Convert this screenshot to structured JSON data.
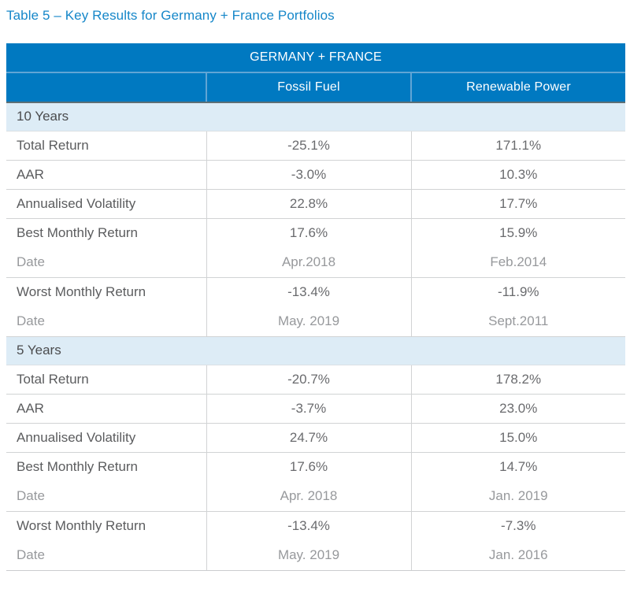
{
  "page": {
    "title": "Table 5 – Key Results for Germany + France Portfolios"
  },
  "table": {
    "header": "GERMANY + FRANCE",
    "columns": [
      "",
      "Fossil Fuel",
      "Renewable Power"
    ],
    "sections": [
      {
        "label": "10 Years",
        "rows": [
          {
            "type": "metric",
            "label": "Total Return",
            "fossil": "-25.1%",
            "renewable": "171.1%"
          },
          {
            "type": "metric",
            "label": "AAR",
            "fossil": "-3.0%",
            "renewable": "10.3%"
          },
          {
            "type": "metric",
            "label": "Annualised Volatility",
            "fossil": "22.8%",
            "renewable": "17.7%"
          },
          {
            "type": "metric",
            "label": "Best Monthly Return",
            "fossil": "17.6%",
            "renewable": "15.9%"
          },
          {
            "type": "date",
            "label": "Date",
            "fossil": "Apr.2018",
            "renewable": "Feb.2014"
          },
          {
            "type": "metric",
            "label": "Worst Monthly Return",
            "fossil": "-13.4%",
            "renewable": "-11.9%"
          },
          {
            "type": "date",
            "label": "Date",
            "fossil": "May. 2019",
            "renewable": "Sept.2011"
          }
        ]
      },
      {
        "label": "5 Years",
        "rows": [
          {
            "type": "metric",
            "label": "Total Return",
            "fossil": "-20.7%",
            "renewable": "178.2%"
          },
          {
            "type": "metric",
            "label": "AAR",
            "fossil": "-3.7%",
            "renewable": "23.0%"
          },
          {
            "type": "metric",
            "label": "Annualised Volatility",
            "fossil": "24.7%",
            "renewable": "15.0%"
          },
          {
            "type": "metric",
            "label": "Best Monthly Return",
            "fossil": "17.6%",
            "renewable": "14.7%"
          },
          {
            "type": "date",
            "label": "Date",
            "fossil": "Apr. 2018",
            "renewable": "Jan. 2019"
          },
          {
            "type": "metric",
            "label": "Worst Monthly Return",
            "fossil": "-13.4%",
            "renewable": "-7.3%"
          },
          {
            "type": "date",
            "label": "Date",
            "fossil": "May. 2019",
            "renewable": "Jan. 2016"
          }
        ]
      }
    ]
  },
  "colors": {
    "title_text": "#1687c9",
    "header_bg": "#0079c1",
    "header_text": "#ffffff",
    "header_divider": "#61a5d5",
    "header_bottom_line": "#5d6f75",
    "section_bg": "#ddecf6",
    "body_text": "#5b5c5e",
    "value_text": "#6a6b6e",
    "date_text": "#97999c",
    "grid_line": "#d1d3d4"
  }
}
